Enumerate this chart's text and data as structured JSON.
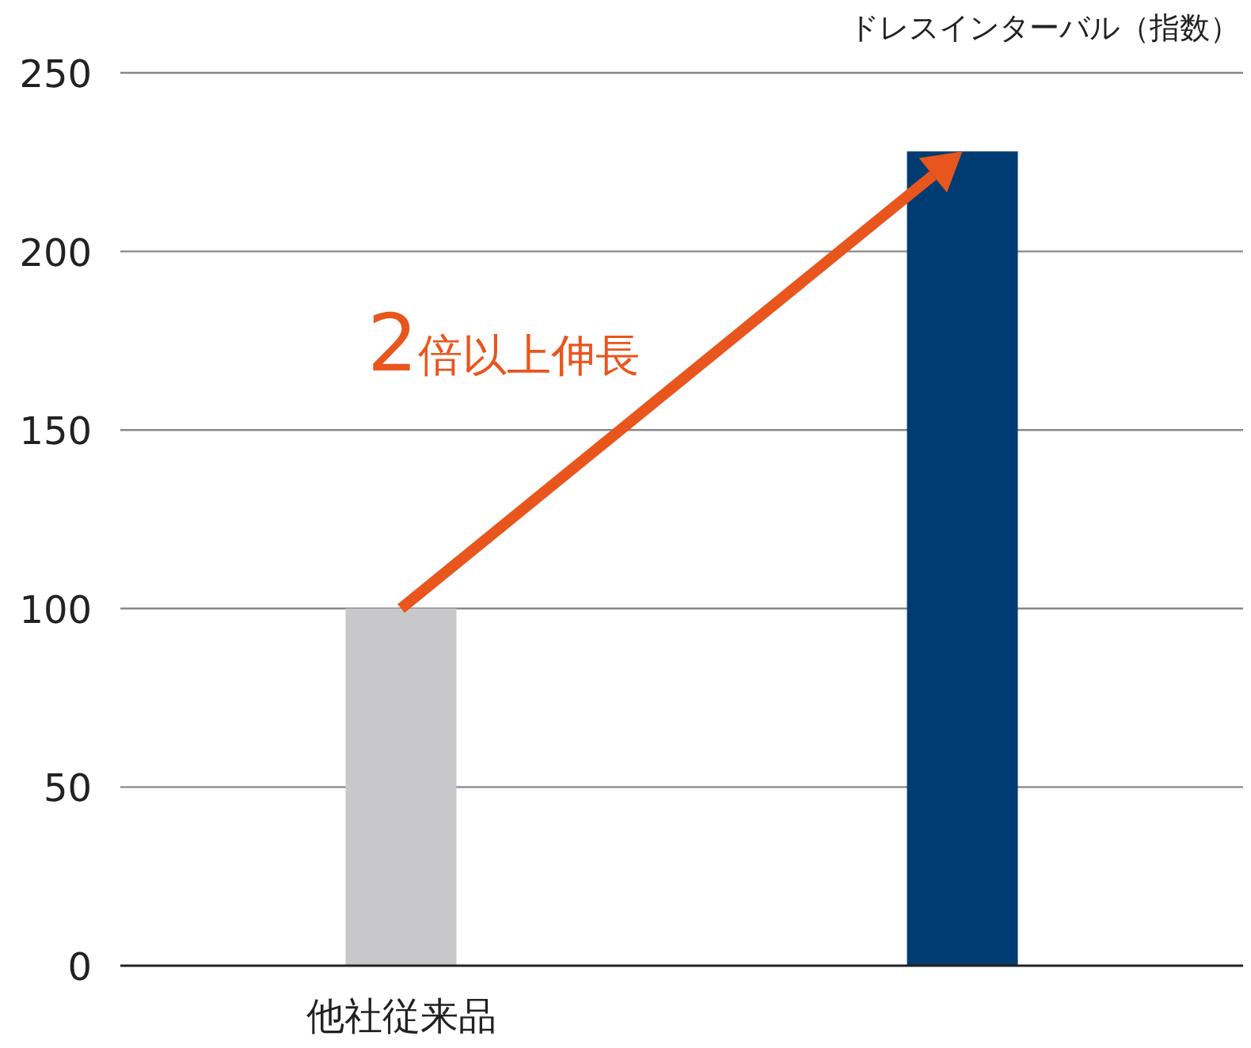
{
  "chart_data": {
    "type": "bar",
    "ylabel": "ドレスインターバル（指数）",
    "categories": [
      "他社従来品",
      null
    ],
    "values": [
      100,
      228
    ],
    "colors": [
      "#c8c8ca",
      "#003c71"
    ],
    "ylim": [
      0,
      250
    ],
    "yticks": [
      0,
      50,
      100,
      150,
      200,
      250
    ],
    "grid": "y",
    "annotations": [
      "2倍以上伸長"
    ]
  }
}
